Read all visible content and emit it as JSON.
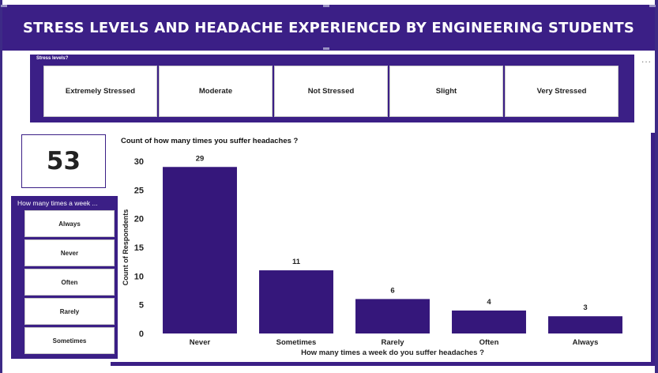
{
  "header": {
    "title": "STRESS LEVELS AND HEADACHE EXPERIENCED BY ENGINEERING STUDENTS",
    "more_menu": "..."
  },
  "stress_slicer": {
    "title": "Stress levels?",
    "options": [
      "Extremely Stressed",
      "Moderate",
      "Not Stressed",
      "Slight",
      "Very Stressed"
    ]
  },
  "kpi": {
    "value": "53"
  },
  "week_slicer": {
    "title": "How many times a week ...",
    "options": [
      "Always",
      "Never",
      "Often",
      "Rarely",
      "Sometimes"
    ]
  },
  "colors": {
    "accent": "#3b1f86",
    "bar": "#35177b"
  },
  "chart_data": {
    "type": "bar",
    "title": "Count of how many times you suffer headaches ?",
    "xlabel": "How many times a week do you suffer headaches ?",
    "ylabel": "Count of Respondents",
    "categories": [
      "Never",
      "Sometimes",
      "Rarely",
      "Often",
      "Always"
    ],
    "values": [
      29,
      11,
      6,
      4,
      3
    ],
    "ylim": [
      0,
      30
    ],
    "yticks": [
      0,
      5,
      10,
      15,
      20,
      25,
      30
    ],
    "grid": false,
    "data_labels": true
  }
}
